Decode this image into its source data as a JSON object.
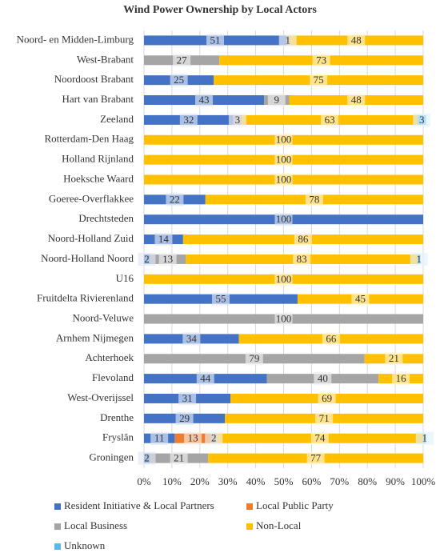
{
  "chart_data": {
    "type": "stacked-bar",
    "orientation": "horizontal",
    "title": "Wind Power Ownership by Local Actors",
    "categories": [
      "Noord- en Midden-Limburg",
      "West-Brabant",
      "Noordoost Brabant",
      "Hart van Brabant",
      "Zeeland",
      "Rotterdam-Den Haag",
      "Holland Rijnland",
      "Hoeksche Waard",
      "Goeree-Overflakkee",
      "Drechtsteden",
      "Noord-Holland Zuid",
      "Noord-Holland Noord",
      "U16",
      "Fruitdelta Rivierenland",
      "Noord-Veluwe",
      "Arnhem Nijmegen",
      "Achterhoek",
      "Flevoland",
      "West-Overijssel",
      "Drenthe",
      "Fryslân",
      "Groningen"
    ],
    "series": [
      {
        "name": "Resident Initiative & Local Partners",
        "color": "#4472c4",
        "values": [
          51,
          null,
          25,
          43,
          32,
          null,
          null,
          null,
          22,
          100,
          14,
          2,
          null,
          55,
          null,
          34,
          null,
          44,
          31,
          29,
          11,
          2
        ]
      },
      {
        "name": "Local Public Party",
        "color": "#ed7d31",
        "values": [
          null,
          null,
          null,
          null,
          null,
          null,
          null,
          null,
          null,
          null,
          null,
          null,
          null,
          null,
          null,
          null,
          null,
          null,
          null,
          null,
          13,
          null
        ]
      },
      {
        "name": "Local Business",
        "color": "#a5a5a5",
        "values": [
          1,
          27,
          null,
          9,
          3,
          null,
          null,
          null,
          null,
          null,
          null,
          13,
          null,
          null,
          100,
          null,
          79,
          40,
          null,
          null,
          2,
          21
        ]
      },
      {
        "name": "Non-Local",
        "color": "#ffc000",
        "values": [
          48,
          73,
          75,
          48,
          63,
          100,
          100,
          100,
          78,
          null,
          86,
          83,
          100,
          45,
          null,
          66,
          21,
          16,
          69,
          71,
          74,
          77
        ]
      },
      {
        "name": "Unknown",
        "color": "#5bb8e8",
        "values": [
          null,
          null,
          null,
          null,
          3,
          null,
          null,
          null,
          null,
          null,
          null,
          1,
          null,
          null,
          null,
          null,
          null,
          null,
          null,
          null,
          1,
          null
        ]
      }
    ],
    "xlim": [
      0,
      100
    ],
    "xticks": [
      {
        "value": 0,
        "label": "0%"
      },
      {
        "value": 10,
        "label": "10%"
      },
      {
        "value": 20,
        "label": "20%"
      },
      {
        "value": 30,
        "label": "30%"
      },
      {
        "value": 40,
        "label": "40%"
      },
      {
        "value": 50,
        "label": "50%"
      },
      {
        "value": 60,
        "label": "60%"
      },
      {
        "value": 70,
        "label": "70%"
      },
      {
        "value": 80,
        "label": "80%"
      },
      {
        "value": 90,
        "label": "90%"
      },
      {
        "value": 100,
        "label": "100%"
      }
    ],
    "grid": true
  }
}
